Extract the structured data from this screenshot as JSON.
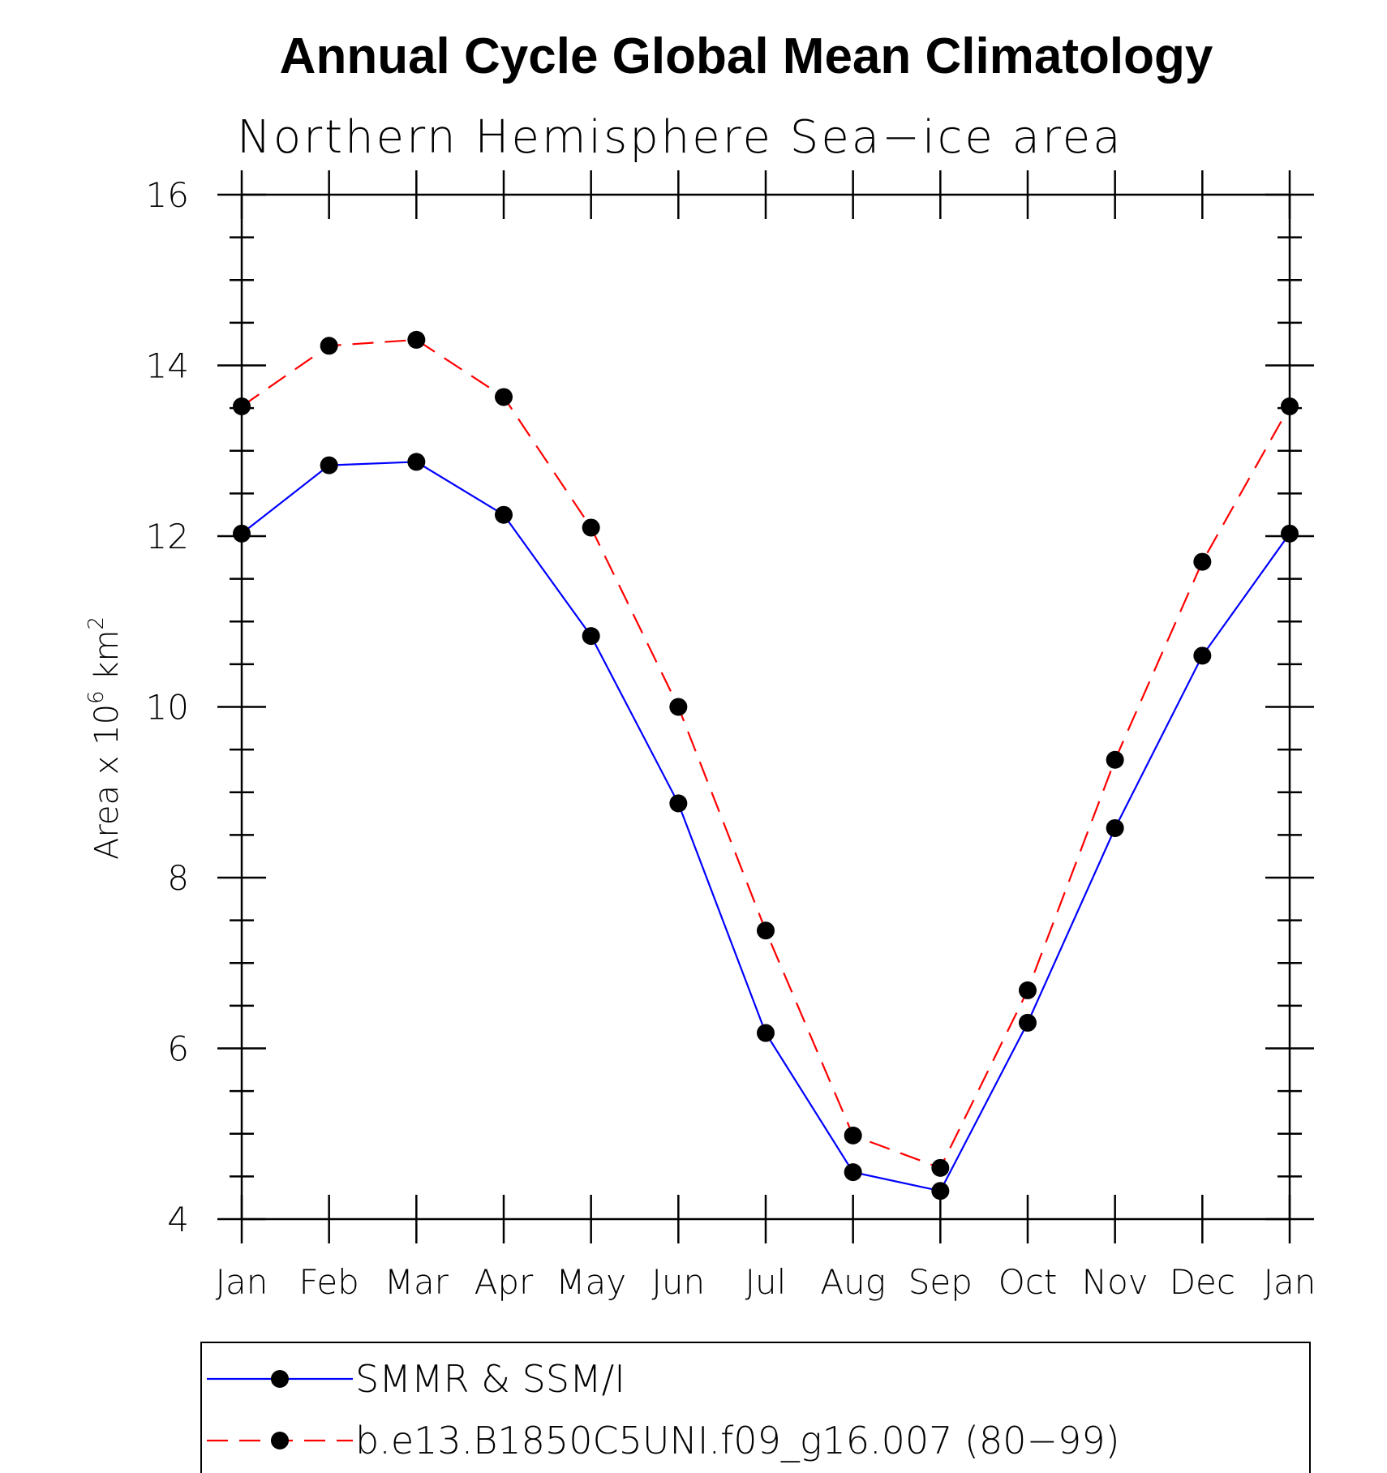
{
  "chart_data": {
    "type": "line",
    "title": "Annual Cycle Global Mean Climatology",
    "subtitle": "Northern Hemisphere Sea−ice area",
    "ylabel_base": "Area x 10",
    "ylabel_exp": "6",
    "ylabel_unit": " km",
    "ylabel_unit_exp": "2",
    "categories": [
      "Jan",
      "Feb",
      "Mar",
      "Apr",
      "May",
      "Jun",
      "Jul",
      "Aug",
      "Sep",
      "Oct",
      "Nov",
      "Dec",
      "Jan"
    ],
    "ylim": [
      4,
      16
    ],
    "yticks": [
      4,
      6,
      8,
      10,
      12,
      14,
      16
    ],
    "grid": false,
    "legend_position": "bottom",
    "series": [
      {
        "name": "SMMR & SSM/I",
        "color": "#0000ff",
        "dash": "solid",
        "values": [
          12.03,
          12.83,
          12.87,
          12.25,
          10.83,
          8.87,
          6.18,
          4.55,
          4.33,
          6.3,
          8.58,
          10.6,
          12.03
        ]
      },
      {
        "name": "b.e13.B1850C5UNI.f09_g16.007 (80−99)",
        "color": "#ff0000",
        "dash": "dashed",
        "values": [
          13.52,
          14.23,
          14.3,
          13.63,
          12.1,
          10.0,
          7.38,
          4.98,
          4.6,
          6.68,
          9.38,
          11.7,
          13.52
        ]
      }
    ]
  }
}
